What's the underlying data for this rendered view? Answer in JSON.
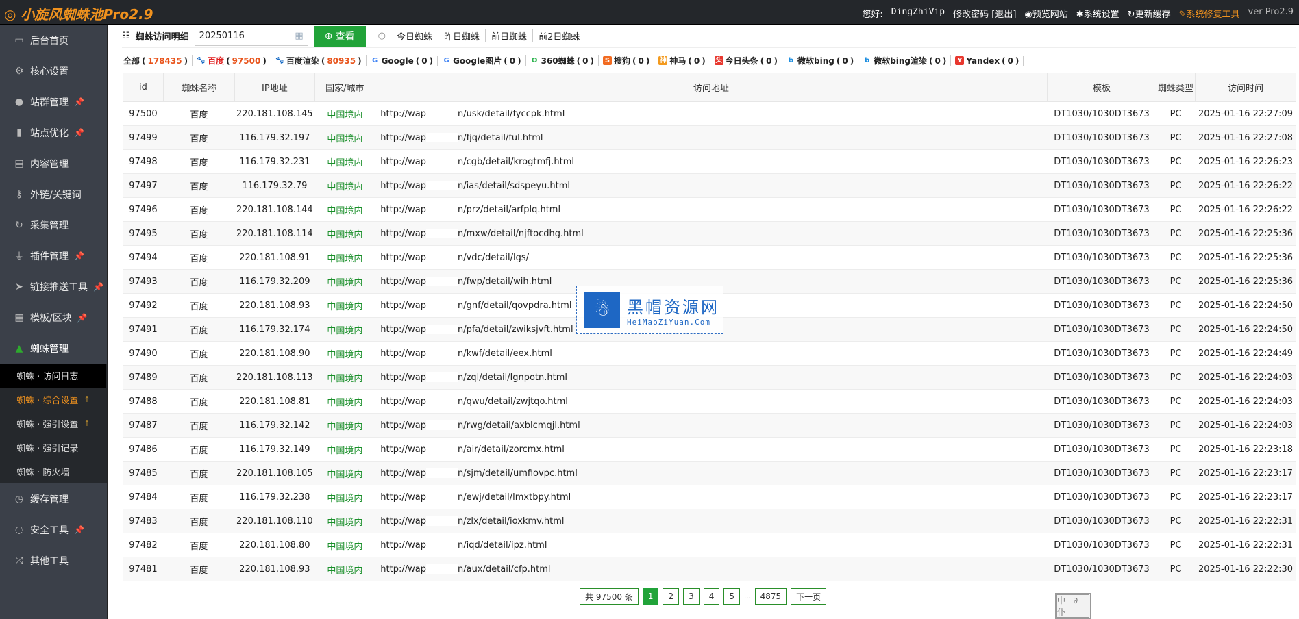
{
  "app": {
    "title": "小旋风蜘蛛池Pro2.9"
  },
  "topnav": {
    "greeting": "您好:",
    "username": "DingZhiVip",
    "change_password": "修改密码",
    "logout": "退出",
    "preview": "预览网站",
    "settings": "系统设置",
    "refresh_cache": "更新缓存",
    "repair": "系统修复工具",
    "version": "ver Pro2.9"
  },
  "sidebar": {
    "items": [
      {
        "label": "后台首页",
        "icon": "monitor-icon",
        "glyph": "▭",
        "pin": false
      },
      {
        "label": "核心设置",
        "icon": "gear-icon",
        "glyph": "⚙",
        "pin": false
      },
      {
        "label": "站群管理",
        "icon": "user-icon",
        "glyph": "●",
        "pin": true
      },
      {
        "label": "站点优化",
        "icon": "bar-chart-icon",
        "glyph": "▮",
        "pin": true
      },
      {
        "label": "内容管理",
        "icon": "document-icon",
        "glyph": "▤",
        "pin": false
      },
      {
        "label": "外链/关键词",
        "icon": "key-icon",
        "glyph": "⚷",
        "pin": false
      },
      {
        "label": "采集管理",
        "icon": "refresh-icon",
        "glyph": "↻",
        "pin": false
      },
      {
        "label": "插件管理",
        "icon": "plug-icon",
        "glyph": "⏚",
        "pin": true
      },
      {
        "label": "链接推送工具",
        "icon": "send-icon",
        "glyph": "➤",
        "pin": true
      },
      {
        "label": "模板/区块",
        "icon": "windows-icon",
        "glyph": "▦",
        "pin": true
      },
      {
        "label": "蜘蛛管理",
        "icon": "android-icon",
        "glyph": "▲",
        "pin": false
      }
    ],
    "sub_items": [
      {
        "label": "蜘蛛 · 访问日志",
        "state": "active",
        "up": false
      },
      {
        "label": "蜘蛛 · 综合设置",
        "state": "highlight",
        "up": true
      },
      {
        "label": "蜘蛛 · 强引设置",
        "state": "",
        "up": true
      },
      {
        "label": "蜘蛛 · 强引记录",
        "state": "",
        "up": false
      },
      {
        "label": "蜘蛛 · 防火墙",
        "state": "",
        "up": false
      }
    ],
    "after_items": [
      {
        "label": "缓存管理",
        "icon": "stopwatch-icon",
        "glyph": "◷",
        "pin": false
      },
      {
        "label": "安全工具",
        "icon": "bulb-icon",
        "glyph": "◌",
        "pin": true
      },
      {
        "label": "其他工具",
        "icon": "shuffle-icon",
        "glyph": "⤮",
        "pin": false
      }
    ]
  },
  "toolbar": {
    "title": "蜘蛛访问明细",
    "date": "20250116",
    "view_label": "查看",
    "quick": [
      "今日蜘蛛",
      "昨日蜘蛛",
      "前日蜘蛛",
      "前2日蜘蛛"
    ]
  },
  "filters": [
    {
      "label": "全部",
      "count": "178435",
      "icon": "",
      "color": ""
    },
    {
      "label": "百度",
      "count": "97500",
      "icon": "paw-icon",
      "color": "#3b5fd9",
      "active": true
    },
    {
      "label": "百度渲染",
      "count": "80935",
      "icon": "paw-icon",
      "color": "#3b5fd9"
    },
    {
      "label": "Google",
      "count": "0",
      "icon": "google-icon",
      "color": "#4285f4"
    },
    {
      "label": "Google图片",
      "count": "0",
      "icon": "google-icon",
      "color": "#4285f4"
    },
    {
      "label": "360蜘蛛",
      "count": "0",
      "icon": "360-icon",
      "color": "#2bb24c"
    },
    {
      "label": "搜狗",
      "count": "0",
      "icon": "sogou-icon",
      "color": "#f26b21"
    },
    {
      "label": "神马",
      "count": "0",
      "icon": "shenma-icon",
      "color": "#f39a1e"
    },
    {
      "label": "今日头条",
      "count": "0",
      "icon": "toutiao-icon",
      "color": "#e8382f"
    },
    {
      "label": "微软bing",
      "count": "0",
      "icon": "bing-icon",
      "color": "#1f8fe0"
    },
    {
      "label": "微软bing渲染",
      "count": "0",
      "icon": "bing-icon",
      "color": "#1f8fe0"
    },
    {
      "label": "Yandex",
      "count": "0",
      "icon": "yandex-icon",
      "color": "#e8382f"
    }
  ],
  "table": {
    "columns": [
      "id",
      "蜘蛛名称",
      "IP地址",
      "国家/城市",
      "访问地址",
      "模板",
      "蜘蛛类型",
      "访问时间"
    ],
    "url_prefix": "http://wap",
    "rows": [
      [
        "97500",
        "百度",
        "220.181.108.145",
        "中国境内",
        "n/usk/detail/fyccpk.html",
        "DT1030/1030DT3673",
        "PC",
        "2025-01-16 22:27:09"
      ],
      [
        "97499",
        "百度",
        "116.179.32.197",
        "中国境内",
        "n/fjq/detail/ful.html",
        "DT1030/1030DT3673",
        "PC",
        "2025-01-16 22:27:08"
      ],
      [
        "97498",
        "百度",
        "116.179.32.231",
        "中国境内",
        "n/cgb/detail/krogtmfj.html",
        "DT1030/1030DT3673",
        "PC",
        "2025-01-16 22:26:23"
      ],
      [
        "97497",
        "百度",
        "116.179.32.79",
        "中国境内",
        "n/ias/detail/sdspeyu.html",
        "DT1030/1030DT3673",
        "PC",
        "2025-01-16 22:26:22"
      ],
      [
        "97496",
        "百度",
        "220.181.108.144",
        "中国境内",
        "n/prz/detail/arfplq.html",
        "DT1030/1030DT3673",
        "PC",
        "2025-01-16 22:26:22"
      ],
      [
        "97495",
        "百度",
        "220.181.108.114",
        "中国境内",
        "n/mxw/detail/njftocdhg.html",
        "DT1030/1030DT3673",
        "PC",
        "2025-01-16 22:25:36"
      ],
      [
        "97494",
        "百度",
        "220.181.108.91",
        "中国境内",
        "n/vdc/detail/lgs/",
        "DT1030/1030DT3673",
        "PC",
        "2025-01-16 22:25:36"
      ],
      [
        "97493",
        "百度",
        "116.179.32.209",
        "中国境内",
        "n/fwp/detail/wih.html",
        "DT1030/1030DT3673",
        "PC",
        "2025-01-16 22:25:36"
      ],
      [
        "97492",
        "百度",
        "220.181.108.93",
        "中国境内",
        "n/gnf/detail/qovpdra.html",
        "DT1030/1030DT3673",
        "PC",
        "2025-01-16 22:24:50"
      ],
      [
        "97491",
        "百度",
        "116.179.32.174",
        "中国境内",
        "n/pfa/detail/zwiksjvft.html",
        "DT1030/1030DT3673",
        "PC",
        "2025-01-16 22:24:50"
      ],
      [
        "97490",
        "百度",
        "220.181.108.90",
        "中国境内",
        "n/kwf/detail/eex.html",
        "DT1030/1030DT3673",
        "PC",
        "2025-01-16 22:24:49"
      ],
      [
        "97489",
        "百度",
        "220.181.108.113",
        "中国境内",
        "n/zql/detail/lgnpotn.html",
        "DT1030/1030DT3673",
        "PC",
        "2025-01-16 22:24:03"
      ],
      [
        "97488",
        "百度",
        "220.181.108.81",
        "中国境内",
        "n/qwu/detail/zwjtqo.html",
        "DT1030/1030DT3673",
        "PC",
        "2025-01-16 22:24:03"
      ],
      [
        "97487",
        "百度",
        "116.179.32.142",
        "中国境内",
        "n/rwg/detail/axblcmqjl.html",
        "DT1030/1030DT3673",
        "PC",
        "2025-01-16 22:24:03"
      ],
      [
        "97486",
        "百度",
        "116.179.32.149",
        "中国境内",
        "n/air/detail/zorcmx.html",
        "DT1030/1030DT3673",
        "PC",
        "2025-01-16 22:23:18"
      ],
      [
        "97485",
        "百度",
        "220.181.108.105",
        "中国境内",
        "n/sjm/detail/umfiovpc.html",
        "DT1030/1030DT3673",
        "PC",
        "2025-01-16 22:23:17"
      ],
      [
        "97484",
        "百度",
        "116.179.32.238",
        "中国境内",
        "n/ewj/detail/lmxtbpy.html",
        "DT1030/1030DT3673",
        "PC",
        "2025-01-16 22:23:17"
      ],
      [
        "97483",
        "百度",
        "220.181.108.110",
        "中国境内",
        "n/zlx/detail/ioxkmv.html",
        "DT1030/1030DT3673",
        "PC",
        "2025-01-16 22:22:31"
      ],
      [
        "97482",
        "百度",
        "220.181.108.80",
        "中国境内",
        "n/iqd/detail/ipz.html",
        "DT1030/1030DT3673",
        "PC",
        "2025-01-16 22:22:31"
      ],
      [
        "97481",
        "百度",
        "220.181.108.93",
        "中国境内",
        "n/aux/detail/cfp.html",
        "DT1030/1030DT3673",
        "PC",
        "2025-01-16 22:22:30"
      ]
    ]
  },
  "pager": {
    "total": "共 97500 条",
    "pages": [
      "1",
      "2",
      "3",
      "4",
      "5"
    ],
    "ellipsis": "...",
    "last": "4875",
    "next": "下一页",
    "current": "1"
  },
  "watermark": {
    "cn": "黑帽资源网",
    "en": "HeiMaoZiYuan.Com"
  },
  "stamp": {
    "text": "中 ∂ 仆"
  }
}
